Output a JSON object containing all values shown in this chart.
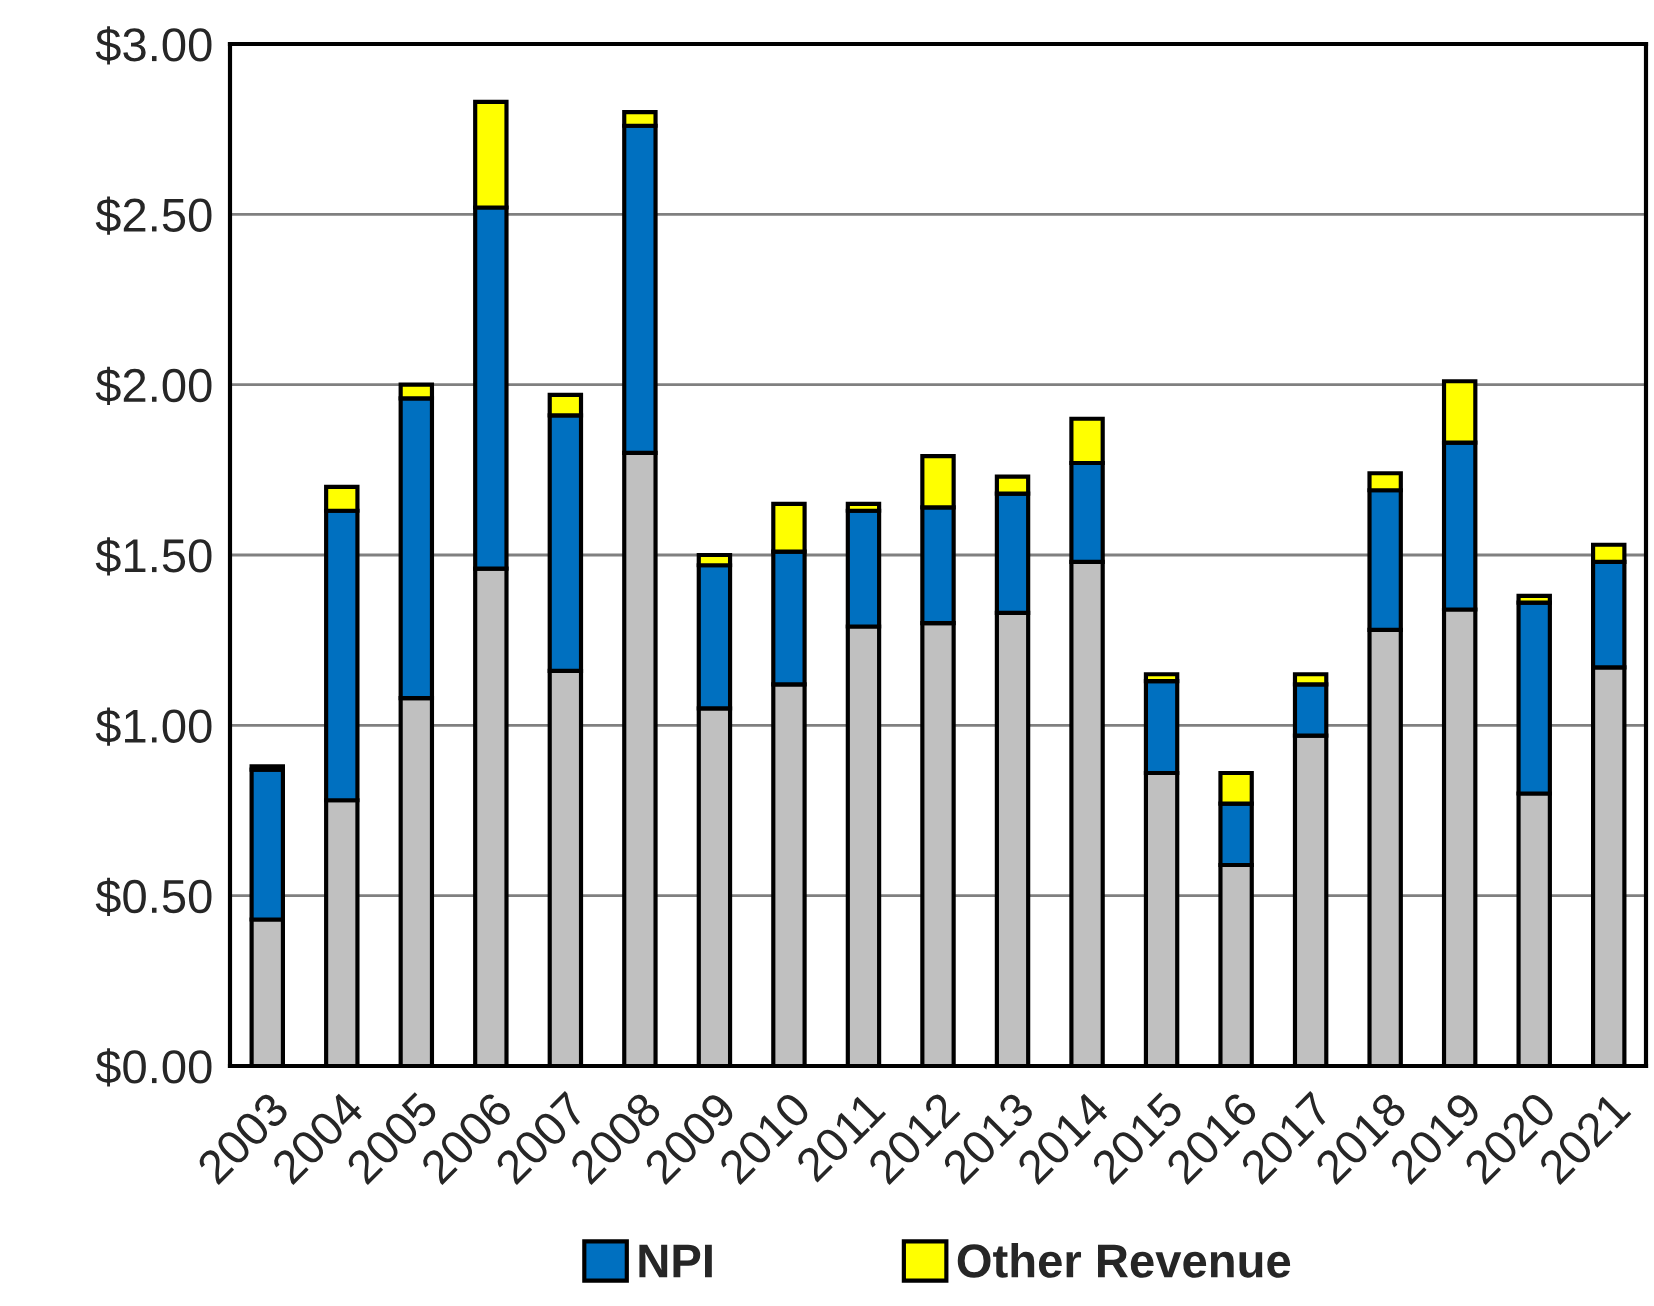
{
  "chart_data": {
    "type": "bar",
    "stacked": true,
    "categories": [
      "2003",
      "2004",
      "2005",
      "2006",
      "2007",
      "2008",
      "2009",
      "2010",
      "2011",
      "2012",
      "2013",
      "2014",
      "2015",
      "2016",
      "2017",
      "2018",
      "2019",
      "2020",
      "2021"
    ],
    "series": [
      {
        "color": "#c0c0c0",
        "values": [
          0.43,
          0.78,
          1.08,
          1.46,
          1.16,
          1.8,
          1.05,
          1.12,
          1.29,
          1.3,
          1.33,
          1.48,
          0.86,
          0.59,
          0.97,
          1.28,
          1.34,
          0.8,
          1.17
        ]
      },
      {
        "name": "NPI",
        "color": "#0070c0",
        "values": [
          0.44,
          0.85,
          0.88,
          1.06,
          0.75,
          0.96,
          0.42,
          0.39,
          0.34,
          0.34,
          0.35,
          0.29,
          0.27,
          0.18,
          0.15,
          0.41,
          0.49,
          0.56,
          0.31
        ]
      },
      {
        "name": "Other Revenue",
        "color": "#ffff00",
        "values": [
          0.01,
          0.07,
          0.04,
          0.31,
          0.06,
          0.04,
          0.03,
          0.14,
          0.02,
          0.15,
          0.05,
          0.13,
          0.02,
          0.09,
          0.03,
          0.05,
          0.18,
          0.02,
          0.05
        ]
      }
    ],
    "ylim": [
      0,
      3
    ],
    "yticks": [
      {
        "value": 0,
        "label": "$0.00"
      },
      {
        "value": 0.5,
        "label": "$0.50"
      },
      {
        "value": 1,
        "label": "$1.00"
      },
      {
        "value": 1.5,
        "label": "$1.50"
      },
      {
        "value": 2,
        "label": "$2.00"
      },
      {
        "value": 2.5,
        "label": "$2.50"
      },
      {
        "value": 3,
        "label": "$3.00"
      }
    ],
    "grid": "y",
    "legend": "bottom"
  }
}
